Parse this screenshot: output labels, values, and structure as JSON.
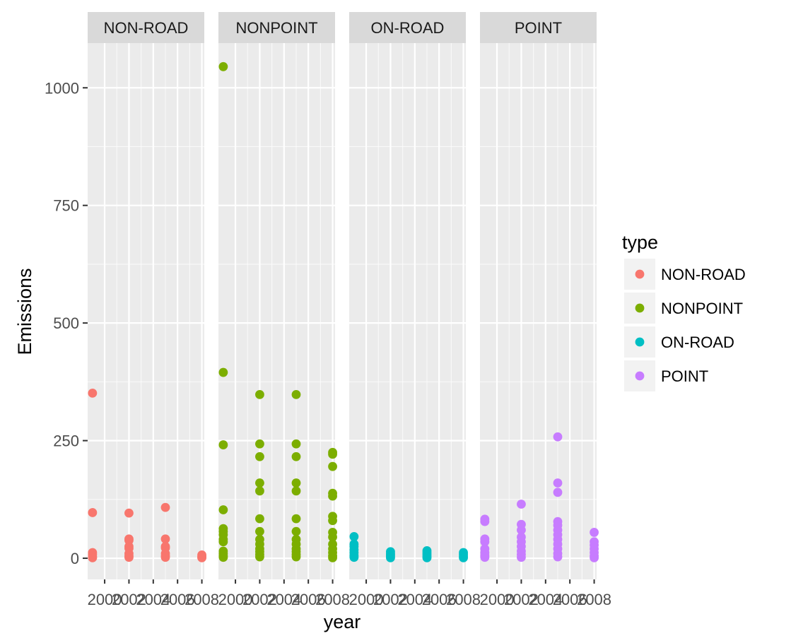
{
  "chart_data": {
    "type": "scatter",
    "faceted_by": "type",
    "xlabel": "year",
    "ylabel": "Emissions",
    "xlim": [
      1998.6,
      2008.2
    ],
    "ylim": [
      -45,
      1095
    ],
    "x_ticks": [
      2000,
      2002,
      2004,
      2006,
      2008
    ],
    "x_tick_labels": [
      "2000",
      "2002",
      "2004",
      "2006",
      "2008"
    ],
    "y_ticks": [
      0,
      250,
      500,
      750,
      1000
    ],
    "y_tick_labels": [
      "0",
      "250",
      "500",
      "750",
      "1000"
    ],
    "grid": true,
    "legend": {
      "title": "type",
      "position": "right"
    },
    "panels": [
      {
        "name": "NON-ROAD",
        "color": "#F8766D",
        "points": [
          {
            "x": 1999,
            "y": 351
          },
          {
            "x": 1999,
            "y": 97
          },
          {
            "x": 1999,
            "y": 12
          },
          {
            "x": 1999,
            "y": 8
          },
          {
            "x": 1999,
            "y": 3
          },
          {
            "x": 1999,
            "y": 1
          },
          {
            "x": 2002,
            "y": 96
          },
          {
            "x": 2002,
            "y": 41
          },
          {
            "x": 2002,
            "y": 38
          },
          {
            "x": 2002,
            "y": 25
          },
          {
            "x": 2002,
            "y": 21
          },
          {
            "x": 2002,
            "y": 10
          },
          {
            "x": 2002,
            "y": 5
          },
          {
            "x": 2002,
            "y": 2
          },
          {
            "x": 2005,
            "y": 108
          },
          {
            "x": 2005,
            "y": 41
          },
          {
            "x": 2005,
            "y": 25
          },
          {
            "x": 2005,
            "y": 22
          },
          {
            "x": 2005,
            "y": 10
          },
          {
            "x": 2005,
            "y": 5
          },
          {
            "x": 2005,
            "y": 2
          },
          {
            "x": 2008,
            "y": 7
          },
          {
            "x": 2008,
            "y": 4
          },
          {
            "x": 2008,
            "y": 2
          },
          {
            "x": 2008,
            "y": 1
          }
        ]
      },
      {
        "name": "NONPOINT",
        "color": "#7CAE00",
        "points": [
          {
            "x": 1999,
            "y": 1045
          },
          {
            "x": 1999,
            "y": 395
          },
          {
            "x": 1999,
            "y": 241
          },
          {
            "x": 1999,
            "y": 103
          },
          {
            "x": 1999,
            "y": 63
          },
          {
            "x": 1999,
            "y": 57
          },
          {
            "x": 1999,
            "y": 50
          },
          {
            "x": 1999,
            "y": 40
          },
          {
            "x": 1999,
            "y": 35
          },
          {
            "x": 1999,
            "y": 15
          },
          {
            "x": 1999,
            "y": 10
          },
          {
            "x": 1999,
            "y": 5
          },
          {
            "x": 1999,
            "y": 2
          },
          {
            "x": 2002,
            "y": 348
          },
          {
            "x": 2002,
            "y": 243
          },
          {
            "x": 2002,
            "y": 216
          },
          {
            "x": 2002,
            "y": 160
          },
          {
            "x": 2002,
            "y": 143
          },
          {
            "x": 2002,
            "y": 84
          },
          {
            "x": 2002,
            "y": 57
          },
          {
            "x": 2002,
            "y": 40
          },
          {
            "x": 2002,
            "y": 30
          },
          {
            "x": 2002,
            "y": 20
          },
          {
            "x": 2002,
            "y": 14
          },
          {
            "x": 2002,
            "y": 8
          },
          {
            "x": 2002,
            "y": 3
          },
          {
            "x": 2005,
            "y": 348
          },
          {
            "x": 2005,
            "y": 243
          },
          {
            "x": 2005,
            "y": 216
          },
          {
            "x": 2005,
            "y": 160
          },
          {
            "x": 2005,
            "y": 143
          },
          {
            "x": 2005,
            "y": 84
          },
          {
            "x": 2005,
            "y": 57
          },
          {
            "x": 2005,
            "y": 40
          },
          {
            "x": 2005,
            "y": 30
          },
          {
            "x": 2005,
            "y": 20
          },
          {
            "x": 2005,
            "y": 14
          },
          {
            "x": 2005,
            "y": 8
          },
          {
            "x": 2005,
            "y": 3
          },
          {
            "x": 2008,
            "y": 225
          },
          {
            "x": 2008,
            "y": 221
          },
          {
            "x": 2008,
            "y": 195
          },
          {
            "x": 2008,
            "y": 138
          },
          {
            "x": 2008,
            "y": 132
          },
          {
            "x": 2008,
            "y": 89
          },
          {
            "x": 2008,
            "y": 80
          },
          {
            "x": 2008,
            "y": 55
          },
          {
            "x": 2008,
            "y": 45
          },
          {
            "x": 2008,
            "y": 30
          },
          {
            "x": 2008,
            "y": 20
          },
          {
            "x": 2008,
            "y": 12
          },
          {
            "x": 2008,
            "y": 5
          },
          {
            "x": 2008,
            "y": 1
          }
        ]
      },
      {
        "name": "ON-ROAD",
        "color": "#00BFC4",
        "points": [
          {
            "x": 1999,
            "y": 46
          },
          {
            "x": 1999,
            "y": 30
          },
          {
            "x": 1999,
            "y": 25
          },
          {
            "x": 1999,
            "y": 18
          },
          {
            "x": 1999,
            "y": 12
          },
          {
            "x": 1999,
            "y": 6
          },
          {
            "x": 1999,
            "y": 2
          },
          {
            "x": 2002,
            "y": 14
          },
          {
            "x": 2002,
            "y": 10
          },
          {
            "x": 2002,
            "y": 7
          },
          {
            "x": 2002,
            "y": 4
          },
          {
            "x": 2002,
            "y": 1
          },
          {
            "x": 2005,
            "y": 16
          },
          {
            "x": 2005,
            "y": 12
          },
          {
            "x": 2005,
            "y": 8
          },
          {
            "x": 2005,
            "y": 4
          },
          {
            "x": 2005,
            "y": 1
          },
          {
            "x": 2008,
            "y": 12
          },
          {
            "x": 2008,
            "y": 8
          },
          {
            "x": 2008,
            "y": 4
          },
          {
            "x": 2008,
            "y": 1
          }
        ]
      },
      {
        "name": "POINT",
        "color": "#C77CFF",
        "points": [
          {
            "x": 1999,
            "y": 83
          },
          {
            "x": 1999,
            "y": 78
          },
          {
            "x": 1999,
            "y": 41
          },
          {
            "x": 1999,
            "y": 35
          },
          {
            "x": 1999,
            "y": 20
          },
          {
            "x": 1999,
            "y": 12
          },
          {
            "x": 1999,
            "y": 6
          },
          {
            "x": 1999,
            "y": 2
          },
          {
            "x": 2002,
            "y": 115
          },
          {
            "x": 2002,
            "y": 72
          },
          {
            "x": 2002,
            "y": 60
          },
          {
            "x": 2002,
            "y": 45
          },
          {
            "x": 2002,
            "y": 35
          },
          {
            "x": 2002,
            "y": 25
          },
          {
            "x": 2002,
            "y": 15
          },
          {
            "x": 2002,
            "y": 8
          },
          {
            "x": 2002,
            "y": 2
          },
          {
            "x": 2005,
            "y": 258
          },
          {
            "x": 2005,
            "y": 160
          },
          {
            "x": 2005,
            "y": 140
          },
          {
            "x": 2005,
            "y": 78
          },
          {
            "x": 2005,
            "y": 70
          },
          {
            "x": 2005,
            "y": 60
          },
          {
            "x": 2005,
            "y": 50
          },
          {
            "x": 2005,
            "y": 40
          },
          {
            "x": 2005,
            "y": 30
          },
          {
            "x": 2005,
            "y": 20
          },
          {
            "x": 2005,
            "y": 10
          },
          {
            "x": 2005,
            "y": 3
          },
          {
            "x": 2008,
            "y": 55
          },
          {
            "x": 2008,
            "y": 35
          },
          {
            "x": 2008,
            "y": 28
          },
          {
            "x": 2008,
            "y": 20
          },
          {
            "x": 2008,
            "y": 12
          },
          {
            "x": 2008,
            "y": 5
          },
          {
            "x": 2008,
            "y": 1
          }
        ]
      }
    ]
  }
}
